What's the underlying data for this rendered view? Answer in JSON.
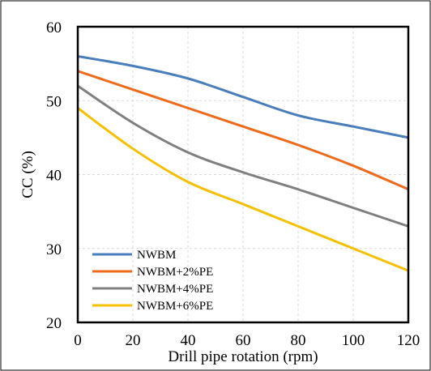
{
  "chart_data": {
    "type": "line",
    "title": "",
    "xlabel": "Drill pipe rotation (rpm)",
    "ylabel": "CC (%)",
    "xlim": [
      0,
      120
    ],
    "ylim": [
      20,
      60
    ],
    "xticks": [
      0,
      20,
      40,
      60,
      80,
      100,
      120
    ],
    "yticks": [
      20,
      30,
      40,
      50,
      60
    ],
    "grid": true,
    "legend_position": "bottom-left",
    "series": [
      {
        "name": "NWBM",
        "color": "#4a7ebb",
        "x": [
          0,
          20,
          40,
          60,
          80,
          100,
          120
        ],
        "y": [
          56,
          54.7,
          53,
          50.5,
          48,
          46.5,
          45
        ]
      },
      {
        "name": "NWBM+2%PE",
        "color": "#ee6a1c",
        "x": [
          0,
          20,
          40,
          60,
          80,
          100,
          120
        ],
        "y": [
          54,
          51.5,
          49,
          46.5,
          44,
          41.2,
          38
        ]
      },
      {
        "name": "NWBM+4%PE",
        "color": "#7f7f7f",
        "x": [
          0,
          20,
          40,
          60,
          80,
          100,
          120
        ],
        "y": [
          52,
          47,
          43,
          40.3,
          38,
          35.5,
          33
        ]
      },
      {
        "name": "NWBM+6%PE",
        "color": "#f5c000",
        "x": [
          0,
          20,
          40,
          60,
          80,
          100,
          120
        ],
        "y": [
          49,
          43.5,
          39,
          36,
          33,
          30,
          27
        ]
      }
    ]
  }
}
